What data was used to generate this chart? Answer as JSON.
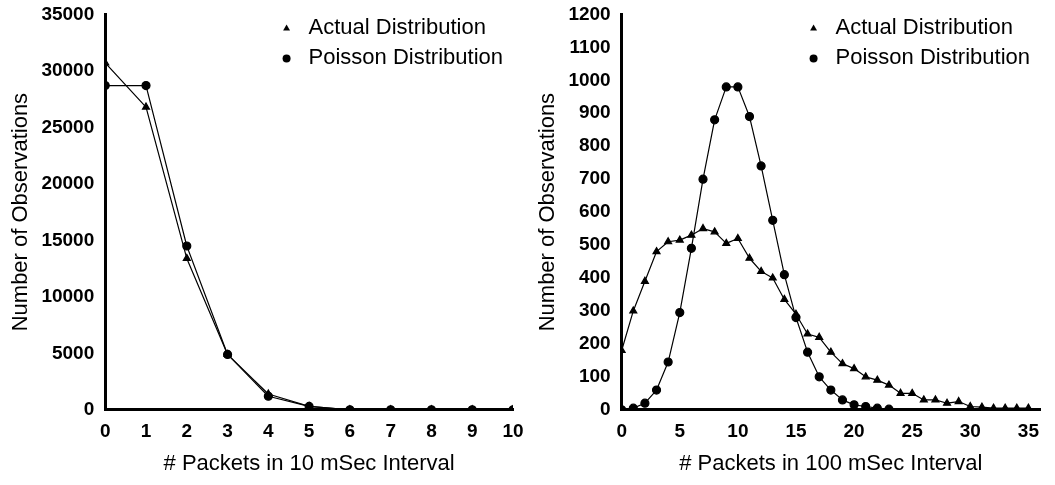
{
  "chart_data": [
    {
      "type": "line",
      "xlabel": "# Packets in 10 mSec Interval",
      "ylabel": "Number of Observations",
      "xlim": [
        0,
        10
      ],
      "xticks": [
        0,
        1,
        2,
        3,
        4,
        5,
        6,
        7,
        8,
        9,
        10
      ],
      "ylim": [
        0,
        35000
      ],
      "yticks": [
        0,
        5000,
        10000,
        15000,
        20000,
        25000,
        30000,
        35000
      ],
      "grid": false,
      "legend": "top right",
      "line_style": "solid",
      "series": [
        {
          "name": "Actual Distribution",
          "color": "#000000",
          "marker": "triangle",
          "x": [
            0,
            1,
            2,
            3,
            4,
            5,
            6,
            7,
            8,
            9,
            10
          ],
          "values": [
            30700,
            26800,
            13400,
            4900,
            1400,
            300,
            0,
            0,
            0,
            0,
            0
          ]
        },
        {
          "name": "Poisson Distribution",
          "color": "#000000",
          "marker": "circle",
          "x": [
            0,
            1,
            2,
            3,
            4,
            5,
            6,
            7,
            8,
            9,
            10
          ],
          "values": [
            28700,
            28700,
            14500,
            4900,
            1200,
            300,
            0,
            0,
            0,
            0,
            0
          ]
        }
      ]
    },
    {
      "type": "line",
      "xlabel": "# Packets in 100 mSec Interval",
      "ylabel": "Number of Observations",
      "xlim": [
        0,
        36
      ],
      "xticks": [
        0,
        5,
        10,
        15,
        20,
        25,
        30,
        35
      ],
      "ylim": [
        0,
        1200
      ],
      "yticks": [
        0,
        100,
        200,
        300,
        400,
        500,
        600,
        700,
        800,
        900,
        1000,
        1100,
        1200
      ],
      "grid": false,
      "legend": "top right",
      "line_style": "solid",
      "series": [
        {
          "name": "Actual Distribution",
          "color": "#000000",
          "marker": "triangle",
          "x": [
            0,
            1,
            2,
            3,
            4,
            5,
            6,
            7,
            8,
            9,
            10,
            11,
            12,
            13,
            14,
            15,
            16,
            17,
            18,
            19,
            20,
            21,
            22,
            23,
            24,
            25,
            26,
            27,
            28,
            29,
            30,
            31,
            32,
            33,
            34,
            35
          ],
          "values": [
            180,
            300,
            390,
            480,
            510,
            515,
            530,
            550,
            540,
            505,
            520,
            460,
            420,
            400,
            335,
            290,
            230,
            220,
            175,
            140,
            125,
            100,
            90,
            75,
            50,
            50,
            30,
            30,
            20,
            25,
            10,
            8,
            5,
            5,
            5,
            5
          ]
        },
        {
          "name": "Poisson Distribution",
          "color": "#000000",
          "marker": "circle",
          "x": [
            0,
            1,
            2,
            3,
            4,
            5,
            6,
            7,
            8,
            9,
            10,
            11,
            12,
            13,
            14,
            15,
            16,
            17,
            18,
            19,
            20,
            21,
            22,
            23
          ],
          "values": [
            0,
            5,
            20,
            60,
            145,
            295,
            490,
            700,
            880,
            980,
            980,
            890,
            740,
            575,
            410,
            280,
            175,
            100,
            60,
            30,
            15,
            10,
            5,
            2
          ]
        }
      ]
    }
  ]
}
